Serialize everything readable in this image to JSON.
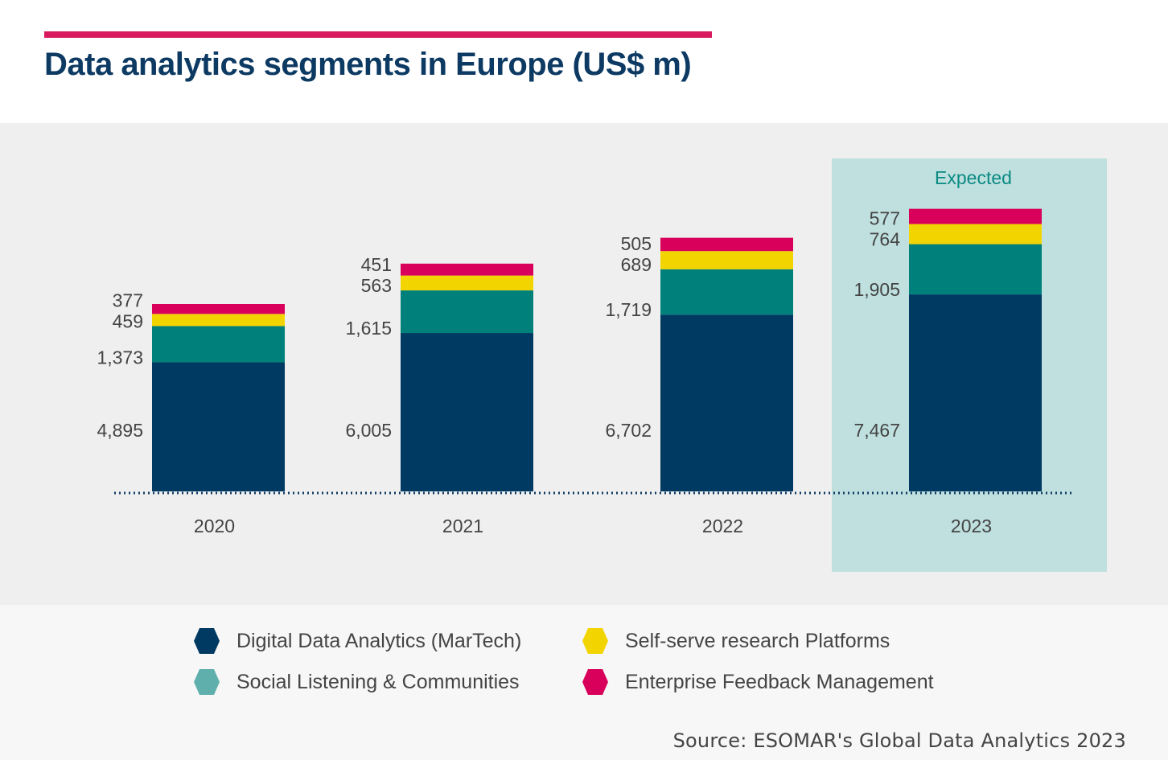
{
  "chart_data": {
    "type": "bar",
    "stacked": true,
    "title": "Data analytics segments in Europe (US$ m)",
    "categories": [
      "2020",
      "2021",
      "2022",
      "2023"
    ],
    "highlight": {
      "category": "2023",
      "label": "Expected",
      "color": "#bfe0df"
    },
    "series": [
      {
        "name": "Digital Data Analytics (MarTech)",
        "color": "#003a62",
        "legend_color": "#003a62",
        "values": [
          4895,
          6005,
          6702,
          7467
        ],
        "labels": [
          "4,895",
          "6,005",
          "6,702",
          "7,467"
        ]
      },
      {
        "name": "Social Listening & Communities",
        "color": "#00807a",
        "legend_color": "#5fb0ad",
        "values": [
          1373,
          1615,
          1719,
          1905
        ],
        "labels": [
          "1,373",
          "1,615",
          "1,719",
          "1,905"
        ]
      },
      {
        "name": "Self-serve research Platforms",
        "color": "#f2d500",
        "legend_color": "#f2d500",
        "values": [
          459,
          563,
          689,
          764
        ],
        "labels": [
          "459",
          "563",
          "689",
          "764"
        ]
      },
      {
        "name": "Enterprise Feedback Management",
        "color": "#d8005a",
        "legend_color": "#d8005a",
        "values": [
          377,
          451,
          505,
          577
        ],
        "labels": [
          "377",
          "451",
          "505",
          "577"
        ]
      }
    ],
    "grid": false,
    "legend_position": "bottom"
  },
  "source": "Source: ESOMAR's Global Data Analytics 2023"
}
